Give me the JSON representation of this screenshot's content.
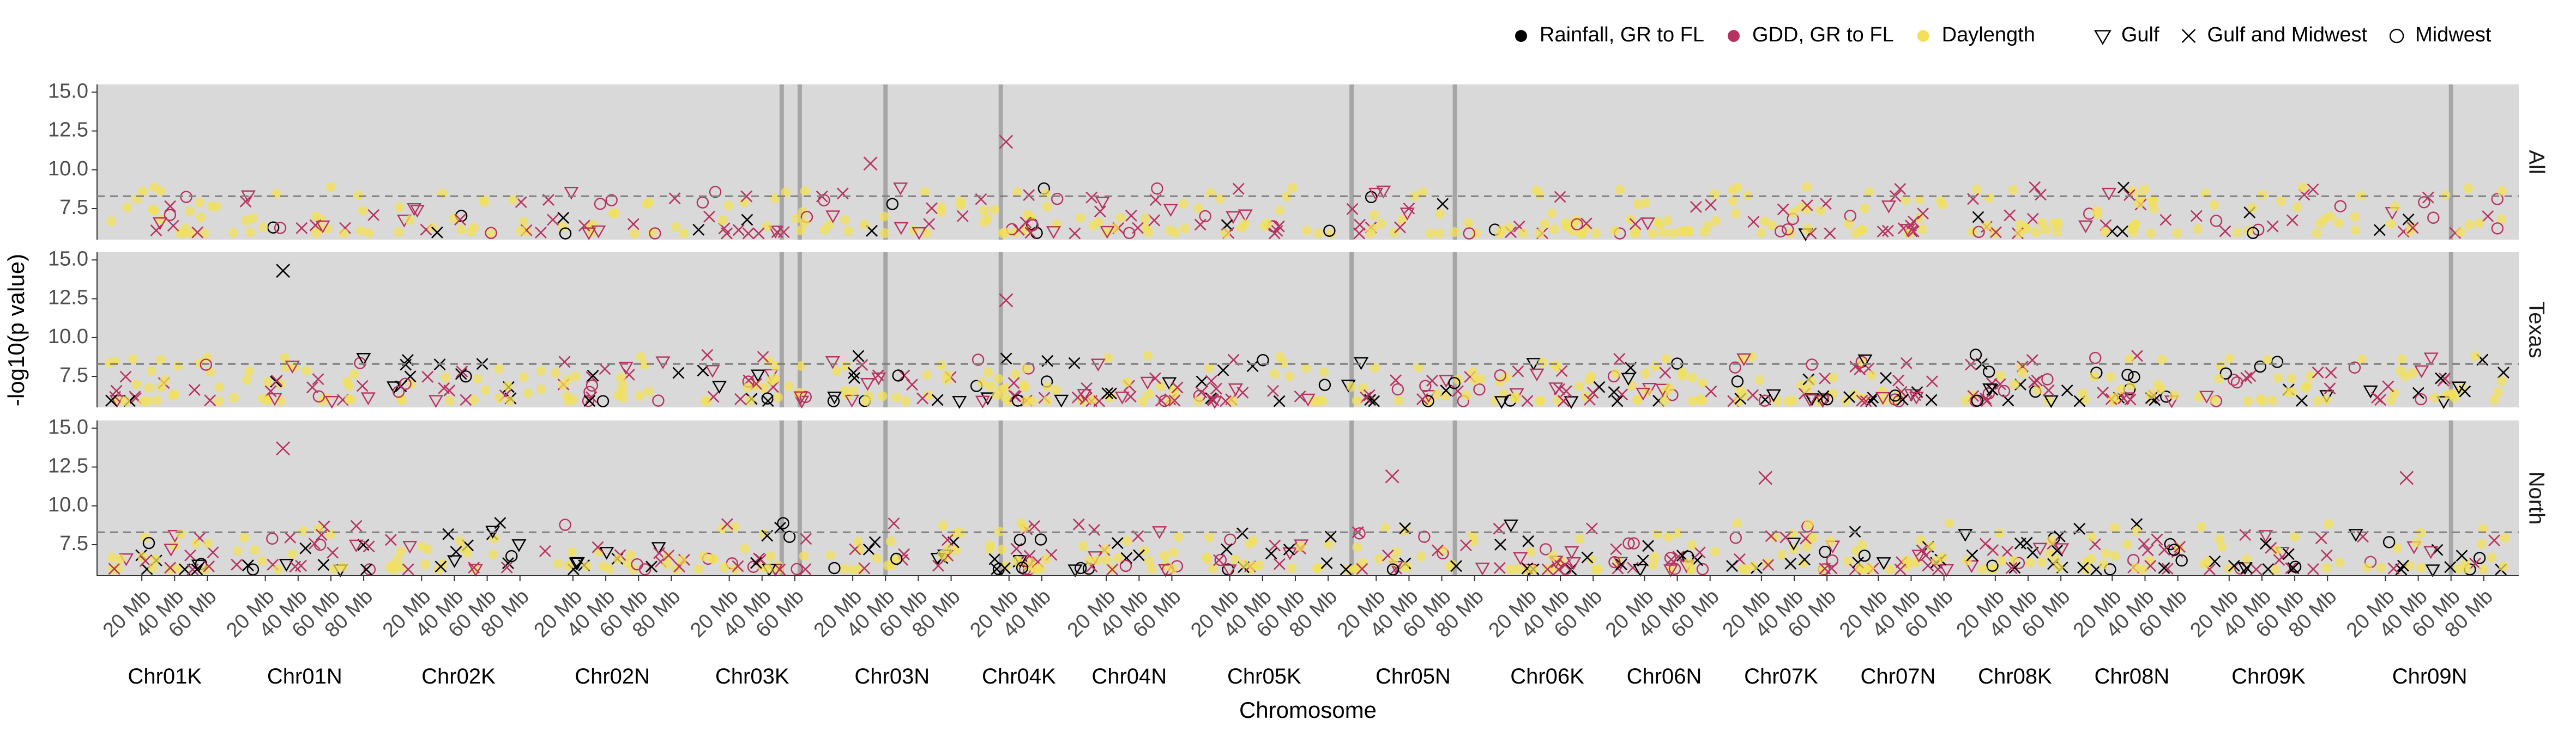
{
  "chart_data": {
    "type": "scatter",
    "title": "",
    "xlabel": "Chromosome",
    "ylabel": "-log10(p value)",
    "ylim": [
      5.5,
      15.5
    ],
    "y_ticks": [
      "7.5",
      "10.0",
      "12.5",
      "15.0"
    ],
    "threshold": 8.3,
    "legend": {
      "placement": "top-right",
      "color_entries": [
        {
          "label": "Rainfall, GR to FL",
          "color": "#000000"
        },
        {
          "label": "GDD, GR to FL",
          "color": "#b8325f"
        },
        {
          "label": "Daylength",
          "color": "#f2e05a"
        }
      ],
      "shape_entries": [
        {
          "label": "Gulf",
          "shape": "triangle-down"
        },
        {
          "label": "Gulf and Midwest",
          "shape": "x"
        },
        {
          "label": "Midwest",
          "shape": "circle"
        }
      ]
    },
    "panels": [
      "All",
      "Texas",
      "North"
    ],
    "chromosomes": [
      {
        "name": "Chr01K",
        "ticks": [
          "20 Mb",
          "40 Mb",
          "60 Mb"
        ]
      },
      {
        "name": "Chr01N",
        "ticks": [
          "20 Mb",
          "40 Mb",
          "60 Mb",
          "80 Mb"
        ]
      },
      {
        "name": "Chr02K",
        "ticks": [
          "20 Mb",
          "40 Mb",
          "60 Mb",
          "80 Mb"
        ]
      },
      {
        "name": "Chr02N",
        "ticks": [
          "20 Mb",
          "40 Mb",
          "60 Mb",
          "80 Mb"
        ]
      },
      {
        "name": "Chr03K",
        "ticks": [
          "20 Mb",
          "40 Mb",
          "60 Mb"
        ]
      },
      {
        "name": "Chr03N",
        "ticks": [
          "20 Mb",
          "40 Mb",
          "60 Mb",
          "80 Mb"
        ]
      },
      {
        "name": "Chr04K",
        "ticks": [
          "20 Mb",
          "40 Mb"
        ]
      },
      {
        "name": "Chr04N",
        "ticks": [
          "20 Mb",
          "40 Mb",
          "60 Mb"
        ]
      },
      {
        "name": "Chr05K",
        "ticks": [
          "20 Mb",
          "40 Mb",
          "60 Mb",
          "80 Mb"
        ]
      },
      {
        "name": "Chr05N",
        "ticks": [
          "20 Mb",
          "40 Mb",
          "60 Mb",
          "80 Mb"
        ]
      },
      {
        "name": "Chr06K",
        "ticks": [
          "20 Mb",
          "40 Mb",
          "60 Mb"
        ]
      },
      {
        "name": "Chr06N",
        "ticks": [
          "20 Mb",
          "40 Mb",
          "60 Mb"
        ]
      },
      {
        "name": "Chr07K",
        "ticks": [
          "20 Mb",
          "40 Mb",
          "60 Mb"
        ]
      },
      {
        "name": "Chr07N",
        "ticks": [
          "20 Mb",
          "40 Mb",
          "60 Mb"
        ]
      },
      {
        "name": "Chr08K",
        "ticks": [
          "20 Mb",
          "40 Mb",
          "60 Mb"
        ]
      },
      {
        "name": "Chr08N",
        "ticks": [
          "20 Mb",
          "40 Mb",
          "60 Mb"
        ]
      },
      {
        "name": "Chr09K",
        "ticks": [
          "20 Mb",
          "40 Mb",
          "60 Mb",
          "80 Mb"
        ]
      },
      {
        "name": "Chr09N",
        "ticks": [
          "20 Mb",
          "40 Mb",
          "60 Mb",
          "80 Mb"
        ]
      }
    ],
    "highlight_lines": [
      {
        "chromosome": "Chr03K",
        "position": "52 Mb"
      },
      {
        "chromosome": "Chr03K",
        "position": "63 Mb"
      },
      {
        "chromosome": "Chr03N",
        "position": "40 Mb"
      },
      {
        "chromosome": "Chr04K",
        "position": "15 Mb"
      },
      {
        "chromosome": "Chr05N",
        "position": "5 Mb"
      },
      {
        "chromosome": "Chr05N",
        "position": "68 Mb"
      },
      {
        "chromosome": "Chr09N",
        "position": "60 Mb"
      }
    ],
    "annotated_peaks": [
      {
        "panel": "All",
        "chromosome": "Chr04K",
        "y": 11.8,
        "series": "GDD, GR to FL"
      },
      {
        "panel": "All",
        "chromosome": "Chr03N",
        "y": 10.4,
        "series": "GDD, GR to FL"
      },
      {
        "panel": "Texas",
        "chromosome": "Chr01N",
        "y": 14.3,
        "series": "Rainfall, GR to FL"
      },
      {
        "panel": "Texas",
        "chromosome": "Chr04K",
        "y": 12.4,
        "series": "GDD, GR to FL"
      },
      {
        "panel": "North",
        "chromosome": "Chr01N",
        "y": 13.7,
        "series": "GDD, GR to FL"
      },
      {
        "panel": "North",
        "chromosome": "Chr05N",
        "y": 11.9,
        "series": "GDD, GR to FL"
      },
      {
        "panel": "North",
        "chromosome": "Chr07K",
        "y": 11.8,
        "series": "GDD, GR to FL"
      },
      {
        "panel": "North",
        "chromosome": "Chr09N",
        "y": 11.8,
        "series": "GDD, GR to FL"
      }
    ],
    "grid": false
  }
}
